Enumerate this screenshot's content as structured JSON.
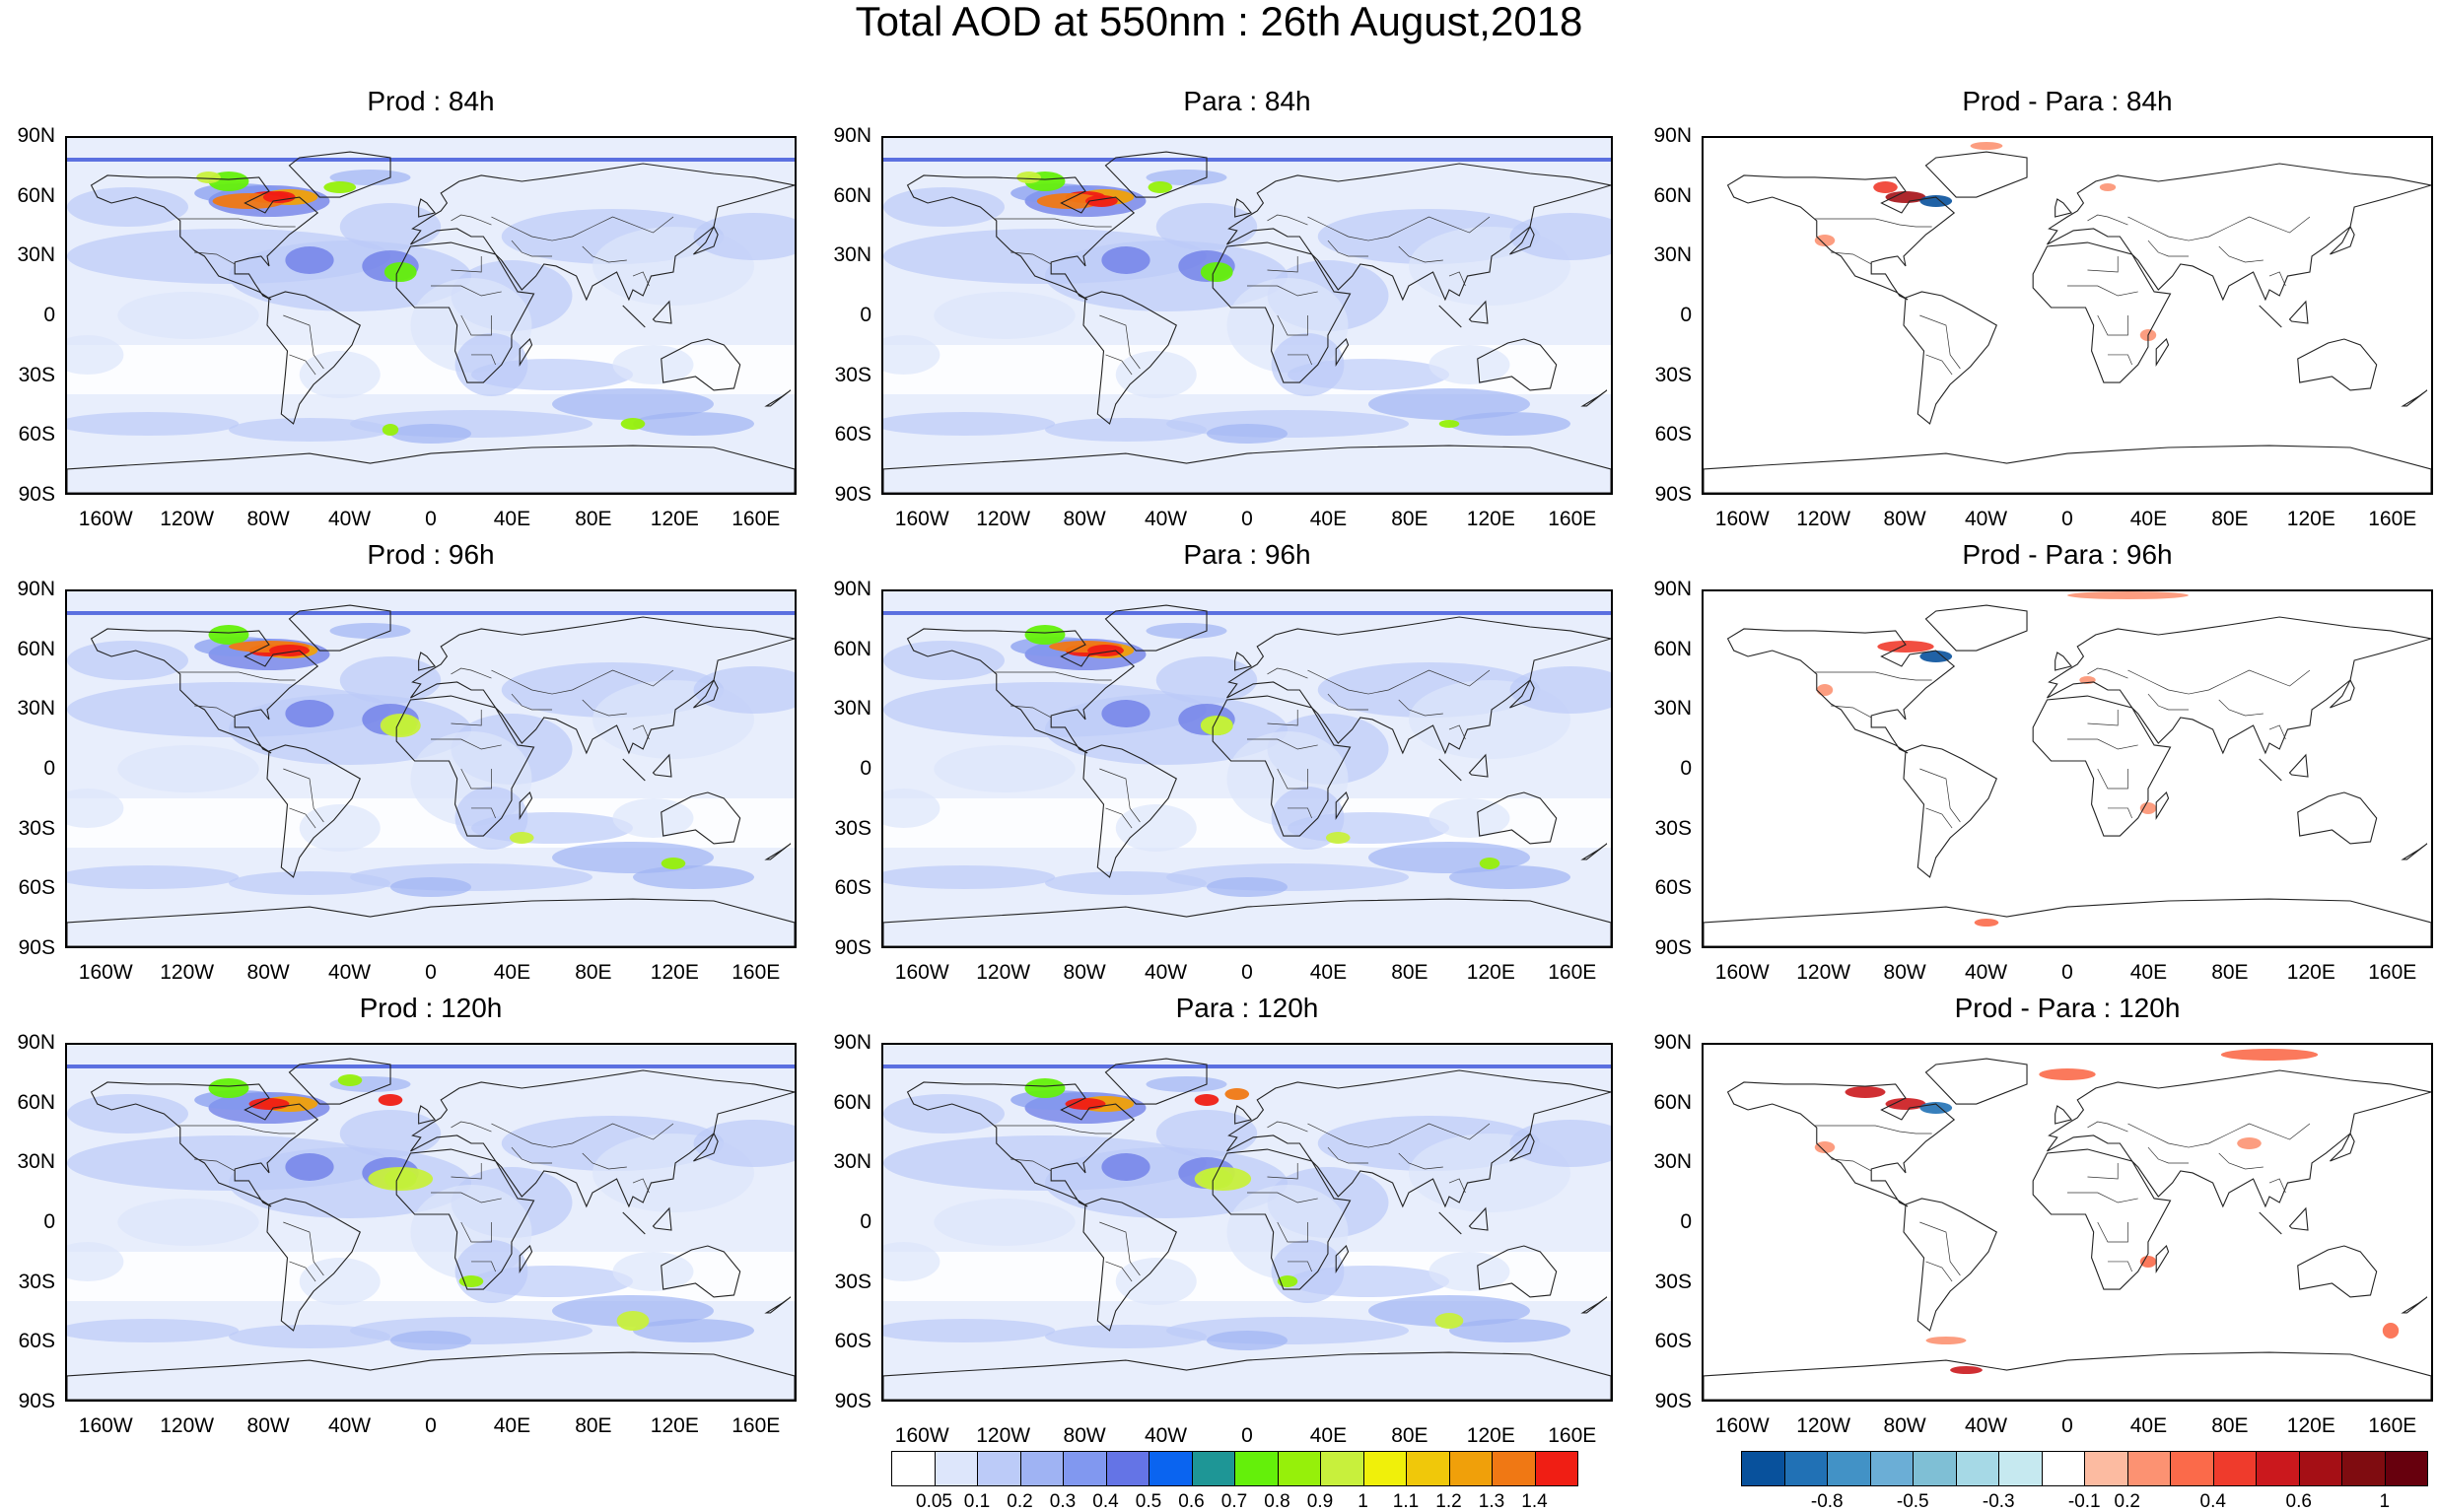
{
  "title": "Total AOD at 550nm : 26th August,2018",
  "lat_labels": [
    "90N",
    "60N",
    "30N",
    "0",
    "30S",
    "60S",
    "90S"
  ],
  "lon_labels": [
    "160W",
    "120W",
    "80W",
    "40W",
    "0",
    "40E",
    "80E",
    "120E",
    "160E"
  ],
  "panels": [
    {
      "title": "Prod : 84h",
      "kind": "aod",
      "variant": "prod_84"
    },
    {
      "title": "Para : 84h",
      "kind": "aod",
      "variant": "para_84"
    },
    {
      "title": "Prod - Para : 84h",
      "kind": "diff",
      "variant": "diff_84"
    },
    {
      "title": "Prod : 96h",
      "kind": "aod",
      "variant": "prod_96"
    },
    {
      "title": "Para : 96h",
      "kind": "aod",
      "variant": "para_96"
    },
    {
      "title": "Prod - Para : 96h",
      "kind": "diff",
      "variant": "diff_96"
    },
    {
      "title": "Prod : 120h",
      "kind": "aod",
      "variant": "prod_120"
    },
    {
      "title": "Para : 120h",
      "kind": "aod",
      "variant": "para_120"
    },
    {
      "title": "Prod - Para : 120h",
      "kind": "diff",
      "variant": "diff_120"
    }
  ],
  "aod_colorbar": {
    "labels": [
      "0.05",
      "0.1",
      "0.2",
      "0.3",
      "0.4",
      "0.5",
      "0.6",
      "0.7",
      "0.8",
      "0.9",
      "1",
      "1.1",
      "1.2",
      "1.3",
      "1.4"
    ],
    "colors": [
      "#ffffff",
      "#dde6fb",
      "#bccbf8",
      "#9fb3f3",
      "#8198f0",
      "#6474e6",
      "#0a64f0",
      "#1e9696",
      "#64f00a",
      "#96f00a",
      "#c8f03c",
      "#f0f00a",
      "#f0c80a",
      "#f0a00a",
      "#f07814",
      "#f01e14"
    ]
  },
  "diff_colorbar": {
    "labels": [
      "-0.8",
      "-0.5",
      "-0.3",
      "-0.1",
      "0.2",
      "0.4",
      "0.6",
      "1"
    ],
    "colors": [
      "#08519c",
      "#2171b5",
      "#4292c6",
      "#6baed6",
      "#7fbfd5",
      "#a6d9e6",
      "#c6e9f0",
      "#ffffff",
      "#fcbba1",
      "#fc9272",
      "#fb6a4a",
      "#ef3b2c",
      "#cb181d",
      "#a50f15",
      "#7f0c10",
      "#67000d"
    ]
  }
}
